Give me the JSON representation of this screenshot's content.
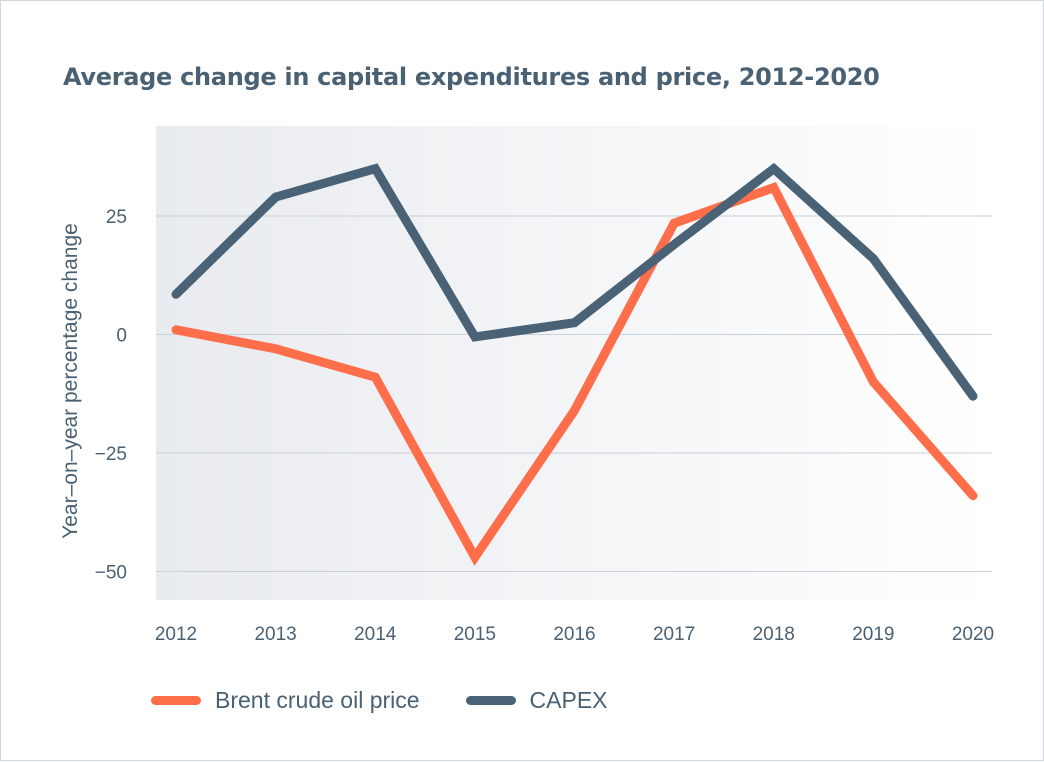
{
  "title": "Average change in capital expenditures and price, 2012-2020",
  "chart_data": {
    "type": "line",
    "title": "Average change in capital expenditures and price, 2012-2020",
    "xlabel": "",
    "ylabel": "Year–on–year percentage change",
    "x": [
      "2012",
      "2013",
      "2014",
      "2015",
      "2016",
      "2017",
      "2018",
      "2019",
      "2020"
    ],
    "ylim": [
      -56,
      44
    ],
    "yticks": [
      25,
      0,
      -25,
      -50
    ],
    "ytick_labels": [
      "25",
      "0",
      "−25",
      "−50"
    ],
    "grid": true,
    "legend_position": "bottom-left",
    "series": [
      {
        "name": "Brent crude oil price",
        "color": "#ff6e4a",
        "values": [
          1,
          -3,
          -9,
          -47,
          -16,
          23.5,
          31,
          -10,
          -34
        ]
      },
      {
        "name": "CAPEX",
        "color": "#4a6276",
        "values": [
          8.5,
          29,
          35,
          -0.5,
          2.5,
          19,
          35,
          16,
          -13
        ]
      }
    ]
  }
}
